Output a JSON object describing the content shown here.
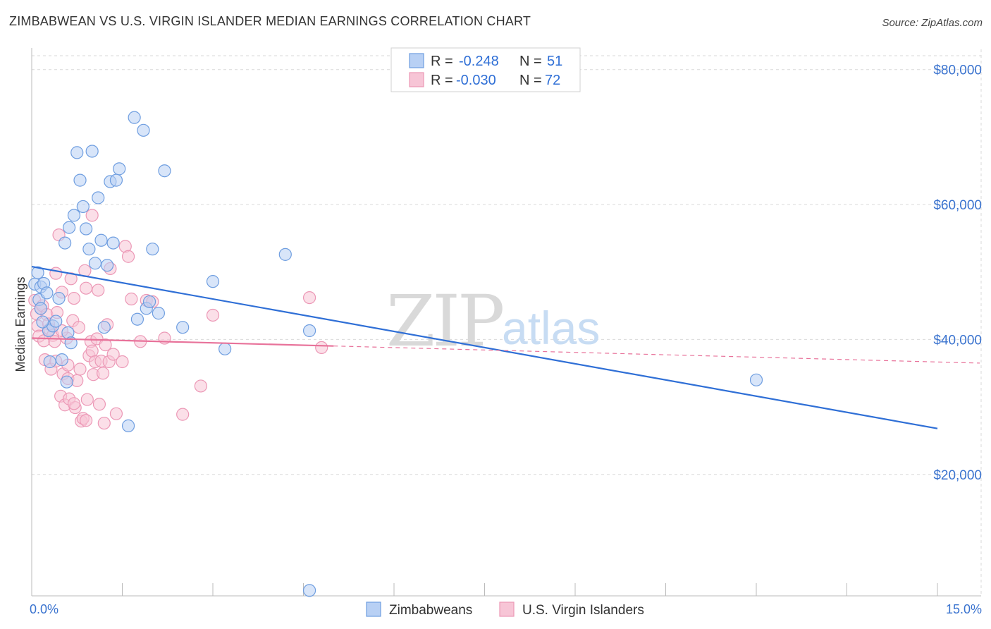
{
  "title": "ZIMBABWEAN VS U.S. VIRGIN ISLANDER MEDIAN EARNINGS CORRELATION CHART",
  "source": "Source: ZipAtlas.com",
  "watermark": {
    "zip": "ZIP",
    "atlas": "atlas"
  },
  "colors": {
    "blue_fill": "#b8d0f4",
    "blue_stroke": "#6f9ee0",
    "blue_line": "#2f6fd6",
    "pink_fill": "#f7c5d6",
    "pink_stroke": "#ec98b6",
    "pink_line": "#e8729a",
    "grid": "#d9d9d9",
    "tick_text": "#3a73cf"
  },
  "chart_data": {
    "type": "scatter",
    "ylabel": "Median Earnings",
    "xlim": [
      0,
      15
    ],
    "ylim": [
      2000,
      83000
    ],
    "x_tick_labels": [
      "0.0%",
      "15.0%"
    ],
    "y_ticks": [
      20000,
      40000,
      60000,
      80000
    ],
    "y_tick_labels": [
      "$20,000",
      "$40,000",
      "$60,000",
      "$80,000"
    ],
    "legend": {
      "rows": [
        {
          "r_label": "R =",
          "r_value": "-0.248",
          "n_label": "N =",
          "n_value": "51"
        },
        {
          "r_label": "R =",
          "r_value": "-0.030",
          "n_label": "N =",
          "n_value": "72"
        }
      ]
    },
    "series": [
      {
        "name": "Zimbabweans",
        "color": "blue",
        "trend": {
          "x0": 0.0,
          "y0": 50800,
          "x1": 15.0,
          "y1": 26800,
          "dashed_from": null
        },
        "points": [
          [
            0.05,
            48200
          ],
          [
            0.1,
            49900
          ],
          [
            0.12,
            45900
          ],
          [
            0.15,
            47800
          ],
          [
            0.2,
            48300
          ],
          [
            0.25,
            46900
          ],
          [
            0.28,
            41300
          ],
          [
            0.35,
            42000
          ],
          [
            0.4,
            42700
          ],
          [
            0.45,
            46100
          ],
          [
            0.5,
            37000
          ],
          [
            0.55,
            54300
          ],
          [
            0.58,
            33700
          ],
          [
            0.6,
            41000
          ],
          [
            0.62,
            56600
          ],
          [
            0.65,
            39500
          ],
          [
            0.7,
            58400
          ],
          [
            0.75,
            67700
          ],
          [
            0.8,
            63600
          ],
          [
            0.85,
            59700
          ],
          [
            0.9,
            56400
          ],
          [
            0.95,
            53400
          ],
          [
            1.0,
            67900
          ],
          [
            1.05,
            51300
          ],
          [
            1.1,
            61000
          ],
          [
            1.15,
            54700
          ],
          [
            1.2,
            41800
          ],
          [
            1.25,
            51000
          ],
          [
            1.3,
            63400
          ],
          [
            1.35,
            54300
          ],
          [
            1.4,
            63600
          ],
          [
            1.45,
            65300
          ],
          [
            1.6,
            27200
          ],
          [
            1.7,
            72900
          ],
          [
            1.75,
            43000
          ],
          [
            1.85,
            71000
          ],
          [
            1.9,
            44600
          ],
          [
            1.95,
            45600
          ],
          [
            2.0,
            53400
          ],
          [
            2.1,
            43900
          ],
          [
            2.2,
            65000
          ],
          [
            2.5,
            41800
          ],
          [
            3.0,
            48600
          ],
          [
            3.2,
            38600
          ],
          [
            4.2,
            52600
          ],
          [
            4.6,
            2800
          ],
          [
            4.6,
            41300
          ],
          [
            12.0,
            34000
          ],
          [
            0.15,
            44600
          ],
          [
            0.3,
            36700
          ],
          [
            0.18,
            42600
          ]
        ]
      },
      {
        "name": "U.S. Virgin Islanders",
        "color": "pink",
        "trend": {
          "x0": 0.0,
          "y0": 40200,
          "x1": 15.0,
          "y1": 36700,
          "dashed_from": 5.0
        },
        "points": [
          [
            0.05,
            45800
          ],
          [
            0.08,
            43800
          ],
          [
            0.1,
            42000
          ],
          [
            0.12,
            40500
          ],
          [
            0.15,
            44600
          ],
          [
            0.18,
            45000
          ],
          [
            0.2,
            39800
          ],
          [
            0.22,
            37000
          ],
          [
            0.25,
            43700
          ],
          [
            0.28,
            42300
          ],
          [
            0.3,
            41500
          ],
          [
            0.32,
            35600
          ],
          [
            0.35,
            40600
          ],
          [
            0.38,
            39700
          ],
          [
            0.4,
            36800
          ],
          [
            0.42,
            44000
          ],
          [
            0.45,
            55500
          ],
          [
            0.48,
            31600
          ],
          [
            0.5,
            47000
          ],
          [
            0.52,
            34900
          ],
          [
            0.55,
            30300
          ],
          [
            0.58,
            40200
          ],
          [
            0.6,
            34200
          ],
          [
            0.62,
            31200
          ],
          [
            0.65,
            49000
          ],
          [
            0.68,
            42800
          ],
          [
            0.7,
            46100
          ],
          [
            0.72,
            29900
          ],
          [
            0.75,
            33900
          ],
          [
            0.78,
            41800
          ],
          [
            0.8,
            35600
          ],
          [
            0.82,
            27900
          ],
          [
            0.85,
            28300
          ],
          [
            0.88,
            50200
          ],
          [
            0.9,
            47600
          ],
          [
            0.92,
            31100
          ],
          [
            0.95,
            37600
          ],
          [
            0.98,
            39700
          ],
          [
            1.0,
            38300
          ],
          [
            1.02,
            34800
          ],
          [
            1.05,
            36700
          ],
          [
            1.08,
            40100
          ],
          [
            1.1,
            47300
          ],
          [
            1.12,
            30400
          ],
          [
            1.15,
            36800
          ],
          [
            1.18,
            35000
          ],
          [
            1.2,
            27600
          ],
          [
            1.22,
            39200
          ],
          [
            1.25,
            42200
          ],
          [
            1.28,
            36700
          ],
          [
            1.3,
            50500
          ],
          [
            1.35,
            37800
          ],
          [
            1.4,
            29000
          ],
          [
            1.5,
            36700
          ],
          [
            1.55,
            53800
          ],
          [
            1.6,
            52300
          ],
          [
            1.65,
            46000
          ],
          [
            1.8,
            39700
          ],
          [
            1.9,
            45800
          ],
          [
            2.0,
            45600
          ],
          [
            2.2,
            40200
          ],
          [
            2.5,
            28900
          ],
          [
            2.8,
            33100
          ],
          [
            3.0,
            43600
          ],
          [
            4.6,
            46200
          ],
          [
            4.8,
            38800
          ],
          [
            0.6,
            36200
          ],
          [
            0.7,
            30500
          ],
          [
            1.0,
            58400
          ],
          [
            0.9,
            28000
          ],
          [
            0.5,
            41300
          ],
          [
            0.4,
            49800
          ]
        ]
      }
    ],
    "bottom_legend": [
      "Zimbabweans",
      "U.S. Virgin Islanders"
    ]
  }
}
